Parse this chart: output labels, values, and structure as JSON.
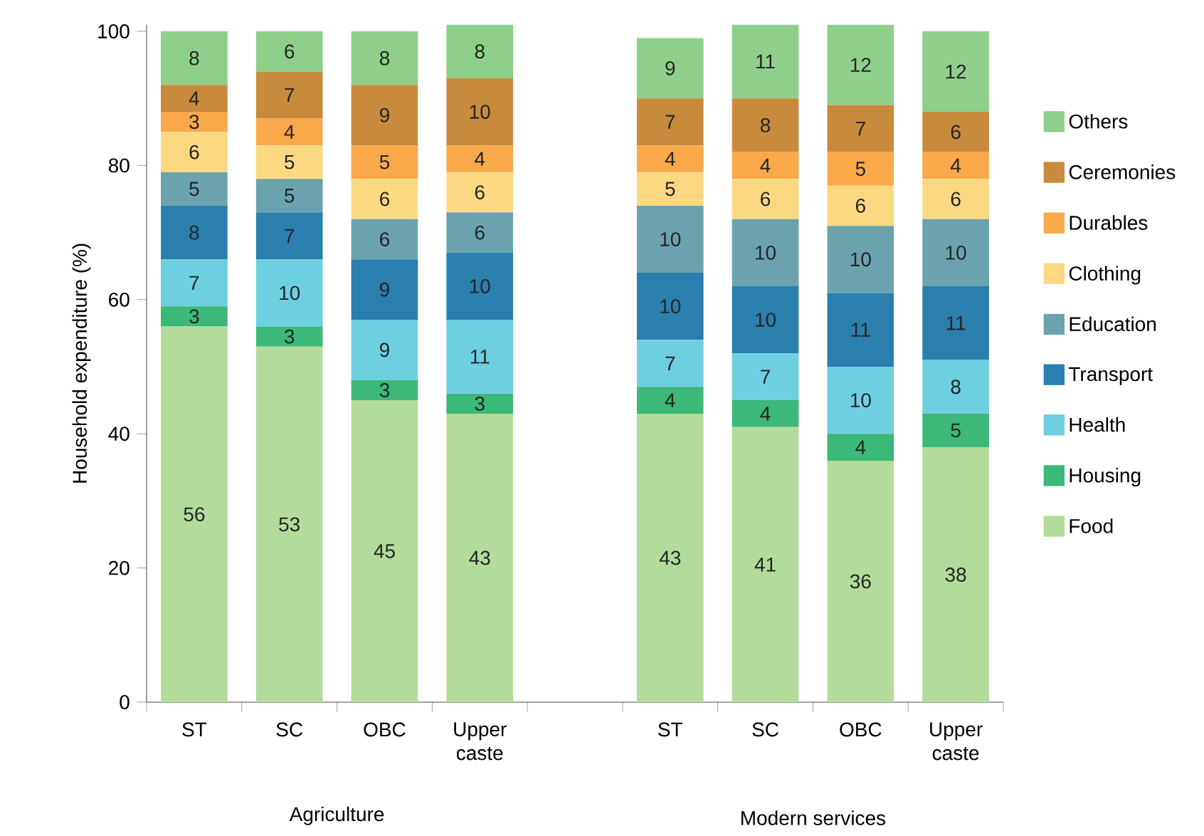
{
  "chart_data": {
    "type": "bar",
    "stacked": true,
    "ylabel": "Household expenditure (%)",
    "categories": [
      "ST",
      "SC",
      "OBC",
      "Upper caste",
      null,
      "ST",
      "SC",
      "OBC",
      "Upper caste"
    ],
    "series": [
      {
        "name": "Food",
        "color": "#b3dc9a",
        "values": [
          56,
          53,
          45,
          43,
          null,
          43,
          41,
          36,
          38
        ]
      },
      {
        "name": "Housing",
        "color": "#3cb878",
        "values": [
          3,
          3,
          3,
          3,
          null,
          4,
          4,
          4,
          5
        ]
      },
      {
        "name": "Health",
        "color": "#6dcfe0",
        "values": [
          7,
          10,
          9,
          11,
          null,
          7,
          7,
          10,
          8
        ]
      },
      {
        "name": "Transport",
        "color": "#2a7fae",
        "values": [
          8,
          7,
          9,
          10,
          null,
          10,
          10,
          11,
          11
        ]
      },
      {
        "name": "Education",
        "color": "#6aa3ae",
        "values": [
          5,
          5,
          6,
          6,
          null,
          10,
          10,
          10,
          10
        ]
      },
      {
        "name": "Clothing",
        "color": "#fdd882",
        "values": [
          6,
          5,
          6,
          6,
          null,
          5,
          6,
          6,
          6
        ]
      },
      {
        "name": "Durables",
        "color": "#f9a84a",
        "values": [
          3,
          4,
          5,
          4,
          null,
          4,
          4,
          5,
          4
        ]
      },
      {
        "name": "Ceremonies",
        "color": "#c88a3c",
        "values": [
          4,
          7,
          9,
          10,
          null,
          7,
          8,
          7,
          6
        ]
      },
      {
        "name": "Others",
        "color": "#8ecf8a",
        "values": [
          8,
          6,
          8,
          8,
          null,
          9,
          11,
          12,
          12
        ]
      }
    ],
    "ylim": [
      0,
      101
    ],
    "yticks": [
      0,
      20,
      40,
      60,
      80,
      100
    ],
    "data_labels": true,
    "legend": "right",
    "grid": false,
    "annotations": [
      "Agriculture",
      "Modern services"
    ]
  }
}
